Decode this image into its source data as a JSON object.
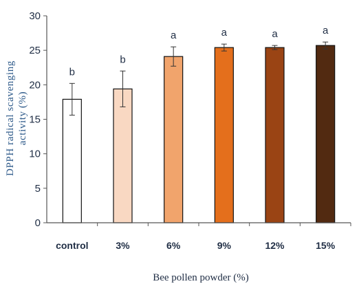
{
  "chart_data": {
    "type": "bar",
    "title": "",
    "xlabel": "Bee pollen powder (%)",
    "ylabel_lines": [
      "DPPH radical scavenging",
      "activity (%)"
    ],
    "categories": [
      "control",
      "3%",
      "6%",
      "9%",
      "12%",
      "15%"
    ],
    "values": [
      17.9,
      19.4,
      24.1,
      25.4,
      25.4,
      25.7
    ],
    "errors": [
      2.3,
      2.6,
      1.4,
      0.5,
      0.3,
      0.5
    ],
    "significance": [
      "b",
      "b",
      "a",
      "a",
      "a",
      "a"
    ],
    "colors": [
      "#ffffff",
      "#f9d8c2",
      "#f1a46c",
      "#e46f1c",
      "#9a4414",
      "#522a11"
    ],
    "ylim": [
      0,
      30
    ],
    "yticks": [
      0,
      5,
      10,
      15,
      20,
      25,
      30
    ],
    "grid": false,
    "legend": "none"
  }
}
